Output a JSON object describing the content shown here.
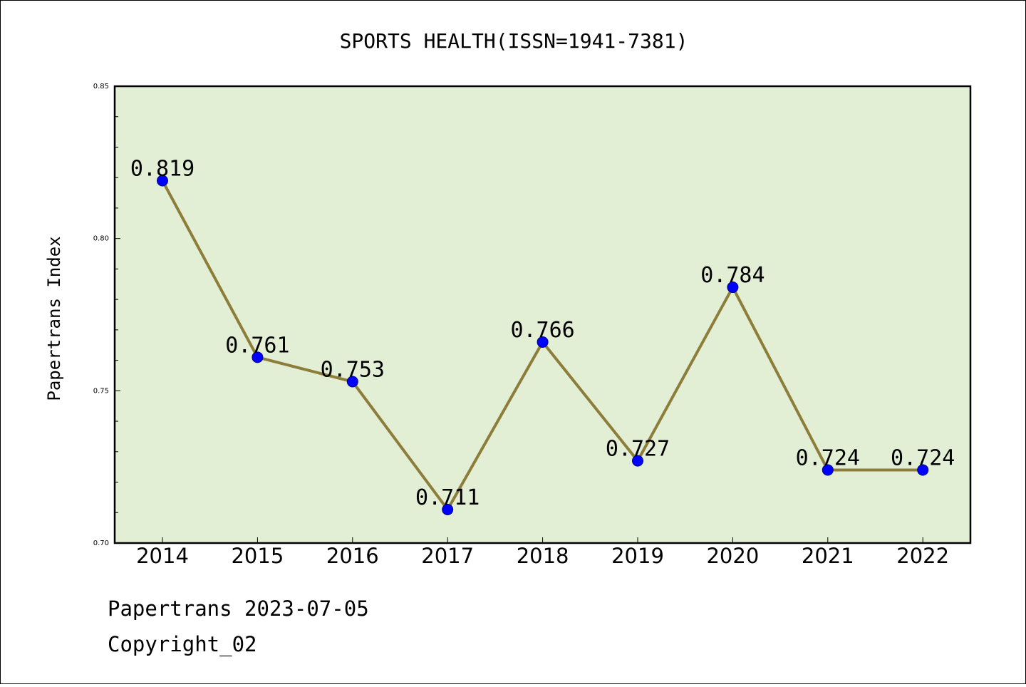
{
  "chart_data": {
    "type": "line",
    "title": "SPORTS HEALTH(ISSN=1941-7381)",
    "xlabel": "",
    "ylabel": "Papertrans Index",
    "categories": [
      "2014",
      "2015",
      "2016",
      "2017",
      "2018",
      "2019",
      "2020",
      "2021",
      "2022"
    ],
    "values": [
      0.819,
      0.761,
      0.753,
      0.711,
      0.766,
      0.727,
      0.784,
      0.724,
      0.724
    ],
    "data_labels": [
      "0.819",
      "0.761",
      "0.753",
      "0.711",
      "0.766",
      "0.727",
      "0.784",
      "0.724",
      "0.724"
    ],
    "ylim": [
      0.7,
      0.85
    ],
    "yticks": [
      "0.70",
      "0.75",
      "0.80",
      "0.85"
    ],
    "grid": false,
    "colors": {
      "plot_background": "#e2efd5",
      "line": "#8c7d3a",
      "marker": "#0000ff"
    }
  },
  "footer": {
    "line1": "Papertrans 2023-07-05",
    "line2": "Copyright_02"
  }
}
